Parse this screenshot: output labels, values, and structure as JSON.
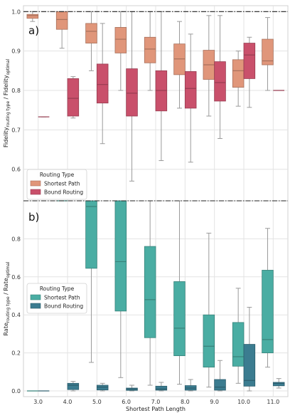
{
  "chart_data": [
    {
      "type": "box",
      "panel_label": "a)",
      "ylabel": "Fidelity",
      "ylabel_sub": "routing type",
      "ylabel_mid": " / Fidelity",
      "ylabel_sub2": "optimal",
      "ylim": [
        0.52,
        1.015
      ],
      "yticks": [
        0.6,
        0.7,
        0.8,
        0.9,
        1.0
      ],
      "reference_line": 1.0,
      "grid": true,
      "legend": {
        "title": "Routing Type",
        "placement": "lower-left",
        "entries": [
          "Shortest Path",
          "Bound Routing"
        ]
      },
      "categories": [
        "3.0",
        "4.0",
        "5.0",
        "6.0",
        "7.0",
        "8.0",
        "9.0",
        "10.0",
        "11.0"
      ],
      "series": [
        {
          "name": "Shortest Path",
          "color": "#e0967a",
          "boxes": [
            {
              "x": "3.0",
              "min": 0.975,
              "q1": 0.983,
              "median": 0.99,
              "q3": 0.993,
              "max": 1.0
            },
            {
              "x": "4.0",
              "min": 0.907,
              "q1": 0.955,
              "median": 0.98,
              "q3": 1.0,
              "max": 1.0
            },
            {
              "x": "5.0",
              "min": 0.85,
              "q1": 0.92,
              "median": 0.95,
              "q3": 0.97,
              "max": 1.0
            },
            {
              "x": "6.0",
              "min": 0.8,
              "q1": 0.895,
              "median": 0.93,
              "q3": 0.96,
              "max": 1.0
            },
            {
              "x": "7.0",
              "min": 0.8,
              "q1": 0.87,
              "median": 0.905,
              "q3": 0.935,
              "max": 1.0
            },
            {
              "x": "8.0",
              "min": 0.755,
              "q1": 0.84,
              "median": 0.88,
              "q3": 0.918,
              "max": 0.975
            },
            {
              "x": "9.0",
              "min": 0.735,
              "q1": 0.828,
              "median": 0.865,
              "q3": 0.902,
              "max": 0.99
            },
            {
              "x": "10.0",
              "min": 0.76,
              "q1": 0.808,
              "median": 0.85,
              "q3": 0.878,
              "max": 0.9
            },
            {
              "x": "11.0",
              "min": 0.8,
              "q1": 0.865,
              "median": 0.875,
              "q3": 0.93,
              "max": 0.985
            }
          ]
        },
        {
          "name": "Bound Routing",
          "color": "#c9506b",
          "boxes": [
            {
              "x": "3.0",
              "min": 0.733,
              "q1": 0.733,
              "median": 0.733,
              "q3": 0.733,
              "max": 0.733
            },
            {
              "x": "4.0",
              "min": 0.73,
              "q1": 0.735,
              "median": 0.78,
              "q3": 0.83,
              "max": 0.835
            },
            {
              "x": "5.0",
              "min": 0.665,
              "q1": 0.768,
              "median": 0.815,
              "q3": 0.867,
              "max": 0.97
            },
            {
              "x": "6.0",
              "min": 0.57,
              "q1": 0.735,
              "median": 0.793,
              "q3": 0.855,
              "max": 1.0
            },
            {
              "x": "7.0",
              "min": 0.622,
              "q1": 0.748,
              "median": 0.8,
              "q3": 0.85,
              "max": 1.0
            },
            {
              "x": "8.0",
              "min": 0.618,
              "q1": 0.755,
              "median": 0.805,
              "q3": 0.848,
              "max": 0.943
            },
            {
              "x": "9.0",
              "min": 0.678,
              "q1": 0.773,
              "median": 0.82,
              "q3": 0.873,
              "max": 0.99
            },
            {
              "x": "10.0",
              "min": 0.757,
              "q1": 0.83,
              "median": 0.89,
              "q3": 0.92,
              "max": 0.935
            },
            {
              "x": "11.0",
              "min": 0.8,
              "q1": 0.8,
              "median": 0.8,
              "q3": 0.8,
              "max": 0.8
            }
          ]
        }
      ]
    },
    {
      "type": "box",
      "panel_label": "b)",
      "ylabel": "Rate",
      "ylabel_sub": "routing type",
      "ylabel_mid": " / Rate",
      "ylabel_sub2": "optimal",
      "xlabel": "Shortest Path Length",
      "ylim": [
        -0.03,
        1.0
      ],
      "yticks": [
        0.0,
        0.2,
        0.4,
        0.6,
        0.8
      ],
      "reference_line": 1.0,
      "grid": true,
      "legend": {
        "title": "Routing Type",
        "placement": "middle-left",
        "entries": [
          "Shortest Path",
          "Bound Routing"
        ]
      },
      "categories": [
        "3.0",
        "4.0",
        "5.0",
        "6.0",
        "7.0",
        "8.0",
        "9.0",
        "10.0",
        "11.0"
      ],
      "series": [
        {
          "name": "Shortest Path",
          "color": "#4aada3",
          "boxes": [
            {
              "x": "3.0",
              "min": 0.0,
              "q1": 0.0,
              "median": 0.0,
              "q3": 0.0,
              "max": 0.0
            },
            {
              "x": "4.0",
              "min": 1.0,
              "q1": 1.0,
              "median": 1.0,
              "q3": 1.0,
              "max": 1.0
            },
            {
              "x": "5.0",
              "min": 0.15,
              "q1": 0.645,
              "median": 0.97,
              "q3": 1.0,
              "max": 1.0
            },
            {
              "x": "6.0",
              "min": 0.07,
              "q1": 0.42,
              "median": 0.68,
              "q3": 1.0,
              "max": 1.0
            },
            {
              "x": "7.0",
              "min": 0.03,
              "q1": 0.28,
              "median": 0.48,
              "q3": 0.76,
              "max": 1.0
            },
            {
              "x": "8.0",
              "min": 0.035,
              "q1": 0.185,
              "median": 0.33,
              "q3": 0.575,
              "max": 1.0
            },
            {
              "x": "9.0",
              "min": 0.02,
              "q1": 0.125,
              "median": 0.235,
              "q3": 0.4,
              "max": 0.83
            },
            {
              "x": "10.0",
              "min": 0.04,
              "q1": 0.13,
              "median": 0.18,
              "q3": 0.36,
              "max": 0.54
            },
            {
              "x": "11.0",
              "min": 0.125,
              "q1": 0.2,
              "median": 0.27,
              "q3": 0.635,
              "max": 0.855
            }
          ]
        },
        {
          "name": "Bound Routing",
          "color": "#3b7c90",
          "boxes": [
            {
              "x": "3.0",
              "min": 0.0,
              "q1": 0.0,
              "median": 0.0,
              "q3": 0.0,
              "max": 0.0
            },
            {
              "x": "4.0",
              "min": 0.0,
              "q1": 0.007,
              "median": 0.03,
              "q3": 0.04,
              "max": 0.05
            },
            {
              "x": "5.0",
              "min": 0.0,
              "q1": 0.005,
              "median": 0.02,
              "q3": 0.03,
              "max": 0.04
            },
            {
              "x": "6.0",
              "min": 0.0,
              "q1": 0.003,
              "median": 0.01,
              "q3": 0.015,
              "max": 0.03
            },
            {
              "x": "7.0",
              "min": 0.0,
              "q1": 0.004,
              "median": 0.01,
              "q3": 0.025,
              "max": 0.045
            },
            {
              "x": "8.0",
              "min": 0.0,
              "q1": 0.004,
              "median": 0.015,
              "q3": 0.028,
              "max": 0.06
            },
            {
              "x": "9.0",
              "min": 0.0,
              "q1": 0.004,
              "median": 0.02,
              "q3": 0.06,
              "max": 0.16
            },
            {
              "x": "10.0",
              "min": 0.0,
              "q1": 0.025,
              "median": 0.055,
              "q3": 0.245,
              "max": 0.44
            },
            {
              "x": "11.0",
              "min": 0.015,
              "q1": 0.027,
              "median": 0.04,
              "q3": 0.045,
              "max": 0.065
            }
          ]
        }
      ]
    }
  ]
}
